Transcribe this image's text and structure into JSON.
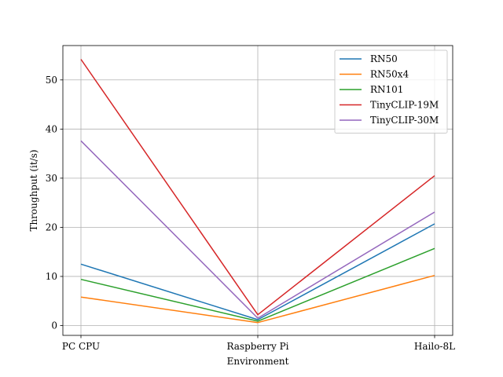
{
  "chart_data": {
    "type": "line",
    "categories": [
      "PC CPU",
      "Raspberry Pi",
      "Hailo-8L"
    ],
    "xlabel": "Environment",
    "ylabel": "Throughput (it/s)",
    "ylim": [
      -2,
      57
    ],
    "yticks": [
      0,
      10,
      20,
      30,
      40,
      50
    ],
    "grid": true,
    "legend_position": "top-right",
    "series": [
      {
        "name": "RN50",
        "color": "#1f77b4",
        "values": [
          12.5,
          1.2,
          20.7
        ]
      },
      {
        "name": "RN50x4",
        "color": "#ff7f0e",
        "values": [
          5.8,
          0.6,
          10.2
        ]
      },
      {
        "name": "RN101",
        "color": "#2ca02c",
        "values": [
          9.4,
          0.9,
          15.7
        ]
      },
      {
        "name": "TinyCLIP-19M",
        "color": "#d62728",
        "values": [
          54.2,
          2.2,
          30.5
        ]
      },
      {
        "name": "TinyCLIP-30M",
        "color": "#9467bd",
        "values": [
          37.6,
          1.5,
          23.1
        ]
      }
    ]
  }
}
